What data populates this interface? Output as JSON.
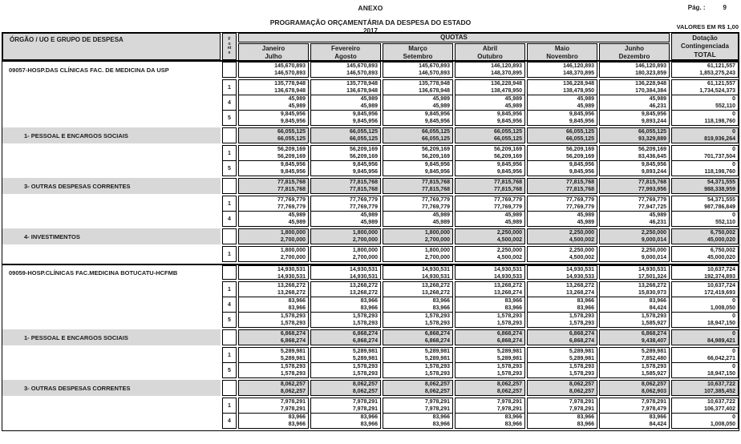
{
  "page": {
    "anexo": "ANEXO",
    "page_label": "Pág. :",
    "page_number": "9",
    "title": "PROGRAMAÇÃO ORÇAMENTÁRIA DA DESPESA DO ESTADO",
    "year": "2017",
    "values_note": "VALORES EM R$ 1,00"
  },
  "colors": {
    "header_bg": "#d8d8d8",
    "group_row_bg": "#d8d8d8",
    "border": "#000000"
  },
  "table": {
    "org_header": "ÓRGÃO / UO  E GRUPO DE DESPESA",
    "fonte_header": "Fonte",
    "quotas_header": "QUOTAS",
    "dotacao_header": {
      "line1": "Dotação",
      "line2": "Contingenciada",
      "line3": "TOTAL"
    },
    "month_columns": [
      {
        "top": "Janeiro",
        "bottom": "Julho"
      },
      {
        "top": "Fevereiro",
        "bottom": "Agosto"
      },
      {
        "top": "Março",
        "bottom": "Setembro"
      },
      {
        "top": "Abril",
        "bottom": "Outubro"
      },
      {
        "top": "Maio",
        "bottom": "Novembro"
      },
      {
        "top": "Junho",
        "bottom": "Dezembro"
      }
    ],
    "rows": [
      {
        "type": "org",
        "label": "09057-HOSP.DAS CLÍNICAS FAC. DE MEDICINA DA USP",
        "fonte": "",
        "cells": [
          [
            "145,670,893",
            "146,570,893"
          ],
          [
            "145,670,893",
            "146,570,893"
          ],
          [
            "145,670,893",
            "146,570,893"
          ],
          [
            "146,120,893",
            "148,370,895"
          ],
          [
            "146,120,893",
            "148,370,895"
          ],
          [
            "146,120,893",
            "180,323,859"
          ]
        ],
        "total": [
          "61,121,557",
          "1,853,275,243"
        ]
      },
      {
        "type": "fonte",
        "label": "",
        "fonte": "1",
        "cells": [
          [
            "135,778,948",
            "136,678,948"
          ],
          [
            "135,778,948",
            "136,678,948"
          ],
          [
            "135,778,948",
            "136,678,948"
          ],
          [
            "136,228,948",
            "138,478,950"
          ],
          [
            "136,228,948",
            "138,478,950"
          ],
          [
            "136,228,948",
            "170,384,384"
          ]
        ],
        "total": [
          "61,121,557",
          "1,734,524,373"
        ]
      },
      {
        "type": "fonte",
        "label": "",
        "fonte": "4",
        "cells": [
          [
            "45,989",
            "45,989"
          ],
          [
            "45,989",
            "45,989"
          ],
          [
            "45,989",
            "45,989"
          ],
          [
            "45,989",
            "45,989"
          ],
          [
            "45,989",
            "45,989"
          ],
          [
            "45,989",
            "46,231"
          ]
        ],
        "total": [
          "0",
          "552,110"
        ]
      },
      {
        "type": "fonte",
        "label": "",
        "fonte": "5",
        "cells": [
          [
            "9,845,956",
            "9,845,956"
          ],
          [
            "9,845,956",
            "9,845,956"
          ],
          [
            "9,845,956",
            "9,845,956"
          ],
          [
            "9,845,956",
            "9,845,956"
          ],
          [
            "9,845,956",
            "9,845,956"
          ],
          [
            "9,845,956",
            "9,893,244"
          ]
        ],
        "total": [
          "0",
          "118,198,760"
        ]
      },
      {
        "type": "group",
        "label": "1- PESSOAL E ENCARGOS SOCIAIS",
        "fonte": "",
        "cells": [
          [
            "66,055,125",
            "66,055,125"
          ],
          [
            "66,055,125",
            "66,055,125"
          ],
          [
            "66,055,125",
            "66,055,125"
          ],
          [
            "66,055,125",
            "66,055,125"
          ],
          [
            "66,055,125",
            "66,055,125"
          ],
          [
            "66,055,125",
            "93,329,889"
          ]
        ],
        "total": [
          "0",
          "819,936,264"
        ]
      },
      {
        "type": "fonte",
        "label": "",
        "fonte": "1",
        "cells": [
          [
            "56,209,169",
            "56,209,169"
          ],
          [
            "56,209,169",
            "56,209,169"
          ],
          [
            "56,209,169",
            "56,209,169"
          ],
          [
            "56,209,169",
            "56,209,169"
          ],
          [
            "56,209,169",
            "56,209,169"
          ],
          [
            "56,209,169",
            "83,436,645"
          ]
        ],
        "total": [
          "0",
          "701,737,504"
        ]
      },
      {
        "type": "fonte",
        "label": "",
        "fonte": "5",
        "cells": [
          [
            "9,845,956",
            "9,845,956"
          ],
          [
            "9,845,956",
            "9,845,956"
          ],
          [
            "9,845,956",
            "9,845,956"
          ],
          [
            "9,845,956",
            "9,845,956"
          ],
          [
            "9,845,956",
            "9,845,956"
          ],
          [
            "9,845,956",
            "9,893,244"
          ]
        ],
        "total": [
          "0",
          "118,198,760"
        ]
      },
      {
        "type": "group",
        "label": "3- OUTRAS DESPESAS CORRENTES",
        "fonte": "",
        "cells": [
          [
            "77,815,768",
            "77,815,768"
          ],
          [
            "77,815,768",
            "77,815,768"
          ],
          [
            "77,815,768",
            "77,815,768"
          ],
          [
            "77,815,768",
            "77,815,768"
          ],
          [
            "77,815,768",
            "77,815,768"
          ],
          [
            "77,815,768",
            "77,993,956"
          ]
        ],
        "total": [
          "54,371,555",
          "988,338,959"
        ]
      },
      {
        "type": "fonte",
        "label": "",
        "fonte": "1",
        "cells": [
          [
            "77,769,779",
            "77,769,779"
          ],
          [
            "77,769,779",
            "77,769,779"
          ],
          [
            "77,769,779",
            "77,769,779"
          ],
          [
            "77,769,779",
            "77,769,779"
          ],
          [
            "77,769,779",
            "77,769,779"
          ],
          [
            "77,769,779",
            "77,947,725"
          ]
        ],
        "total": [
          "54,371,555",
          "987,786,849"
        ]
      },
      {
        "type": "fonte",
        "label": "",
        "fonte": "4",
        "cells": [
          [
            "45,989",
            "45,989"
          ],
          [
            "45,989",
            "45,989"
          ],
          [
            "45,989",
            "45,989"
          ],
          [
            "45,989",
            "45,989"
          ],
          [
            "45,989",
            "45,989"
          ],
          [
            "45,989",
            "46,231"
          ]
        ],
        "total": [
          "0",
          "552,110"
        ]
      },
      {
        "type": "group",
        "label": "4- INVESTIMENTOS",
        "fonte": "",
        "cells": [
          [
            "1,800,000",
            "2,700,000"
          ],
          [
            "1,800,000",
            "2,700,000"
          ],
          [
            "1,800,000",
            "2,700,000"
          ],
          [
            "2,250,000",
            "4,500,002"
          ],
          [
            "2,250,000",
            "4,500,002"
          ],
          [
            "2,250,000",
            "9,000,014"
          ]
        ],
        "total": [
          "6,750,002",
          "45,000,020"
        ]
      },
      {
        "type": "fonte",
        "label": "",
        "fonte": "1",
        "cells": [
          [
            "1,800,000",
            "2,700,000"
          ],
          [
            "1,800,000",
            "2,700,000"
          ],
          [
            "1,800,000",
            "2,700,000"
          ],
          [
            "2,250,000",
            "4,500,002"
          ],
          [
            "2,250,000",
            "4,500,002"
          ],
          [
            "2,250,000",
            "9,000,014"
          ]
        ],
        "total": [
          "6,750,002",
          "45,000,020"
        ]
      },
      {
        "type": "org",
        "label": "09059-HOSP.CLÍNICAS FAC.MEDICINA BOTUCATU-HCFMB",
        "fonte": "",
        "cells": [
          [
            "14,930,531",
            "14,930,531"
          ],
          [
            "14,930,531",
            "14,930,531"
          ],
          [
            "14,930,531",
            "14,930,531"
          ],
          [
            "14,930,531",
            "14,930,533"
          ],
          [
            "14,930,531",
            "14,930,533"
          ],
          [
            "14,930,531",
            "17,501,324"
          ]
        ],
        "total": [
          "10,637,724",
          "192,374,893"
        ]
      },
      {
        "type": "fonte",
        "label": "",
        "fonte": "1",
        "cells": [
          [
            "13,268,272",
            "13,268,272"
          ],
          [
            "13,268,272",
            "13,268,272"
          ],
          [
            "13,268,272",
            "13,268,272"
          ],
          [
            "13,268,272",
            "13,268,274"
          ],
          [
            "13,268,272",
            "13,268,274"
          ],
          [
            "13,268,272",
            "15,830,973"
          ]
        ],
        "total": [
          "10,637,724",
          "172,419,693"
        ]
      },
      {
        "type": "fonte",
        "label": "",
        "fonte": "4",
        "cells": [
          [
            "83,966",
            "83,966"
          ],
          [
            "83,966",
            "83,966"
          ],
          [
            "83,966",
            "83,966"
          ],
          [
            "83,966",
            "83,966"
          ],
          [
            "83,966",
            "83,966"
          ],
          [
            "83,966",
            "84,424"
          ]
        ],
        "total": [
          "0",
          "1,008,050"
        ]
      },
      {
        "type": "fonte",
        "label": "",
        "fonte": "5",
        "cells": [
          [
            "1,578,293",
            "1,578,293"
          ],
          [
            "1,578,293",
            "1,578,293"
          ],
          [
            "1,578,293",
            "1,578,293"
          ],
          [
            "1,578,293",
            "1,578,293"
          ],
          [
            "1,578,293",
            "1,578,293"
          ],
          [
            "1,578,293",
            "1,585,927"
          ]
        ],
        "total": [
          "0",
          "18,947,150"
        ]
      },
      {
        "type": "group",
        "label": "1- PESSOAL E ENCARGOS SOCIAIS",
        "fonte": "",
        "cells": [
          [
            "6,868,274",
            "6,868,274"
          ],
          [
            "6,868,274",
            "6,868,274"
          ],
          [
            "6,868,274",
            "6,868,274"
          ],
          [
            "6,868,274",
            "6,868,274"
          ],
          [
            "6,868,274",
            "6,868,274"
          ],
          [
            "6,868,274",
            "9,438,407"
          ]
        ],
        "total": [
          "0",
          "84,989,421"
        ]
      },
      {
        "type": "fonte",
        "label": "",
        "fonte": "1",
        "cells": [
          [
            "5,289,981",
            "5,289,981"
          ],
          [
            "5,289,981",
            "5,289,981"
          ],
          [
            "5,289,981",
            "5,289,981"
          ],
          [
            "5,289,981",
            "5,289,981"
          ],
          [
            "5,289,981",
            "5,289,981"
          ],
          [
            "5,289,981",
            "7,852,480"
          ]
        ],
        "total": [
          "0",
          "66,042,271"
        ]
      },
      {
        "type": "fonte",
        "label": "",
        "fonte": "5",
        "cells": [
          [
            "1,578,293",
            "1,578,293"
          ],
          [
            "1,578,293",
            "1,578,293"
          ],
          [
            "1,578,293",
            "1,578,293"
          ],
          [
            "1,578,293",
            "1,578,293"
          ],
          [
            "1,578,293",
            "1,578,293"
          ],
          [
            "1,578,293",
            "1,585,927"
          ]
        ],
        "total": [
          "0",
          "18,947,150"
        ]
      },
      {
        "type": "group",
        "label": "3- OUTRAS DESPESAS CORRENTES",
        "fonte": "",
        "cells": [
          [
            "8,062,257",
            "8,062,257"
          ],
          [
            "8,062,257",
            "8,062,257"
          ],
          [
            "8,062,257",
            "8,062,257"
          ],
          [
            "8,062,257",
            "8,062,257"
          ],
          [
            "8,062,257",
            "8,062,257"
          ],
          [
            "8,062,257",
            "8,062,903"
          ]
        ],
        "total": [
          "10,637,722",
          "107,385,452"
        ]
      },
      {
        "type": "fonte",
        "label": "",
        "fonte": "1",
        "cells": [
          [
            "7,978,291",
            "7,978,291"
          ],
          [
            "7,978,291",
            "7,978,291"
          ],
          [
            "7,978,291",
            "7,978,291"
          ],
          [
            "7,978,291",
            "7,978,291"
          ],
          [
            "7,978,291",
            "7,978,291"
          ],
          [
            "7,978,291",
            "7,978,479"
          ]
        ],
        "total": [
          "10,637,722",
          "106,377,402"
        ]
      },
      {
        "type": "fonte",
        "label": "",
        "fonte": "4",
        "cells": [
          [
            "83,966",
            "83,966"
          ],
          [
            "83,966",
            "83,966"
          ],
          [
            "83,966",
            "83,966"
          ],
          [
            "83,966",
            "83,966"
          ],
          [
            "83,966",
            "83,966"
          ],
          [
            "83,966",
            "84,424"
          ]
        ],
        "total": [
          "0",
          "1,008,050"
        ]
      }
    ]
  }
}
